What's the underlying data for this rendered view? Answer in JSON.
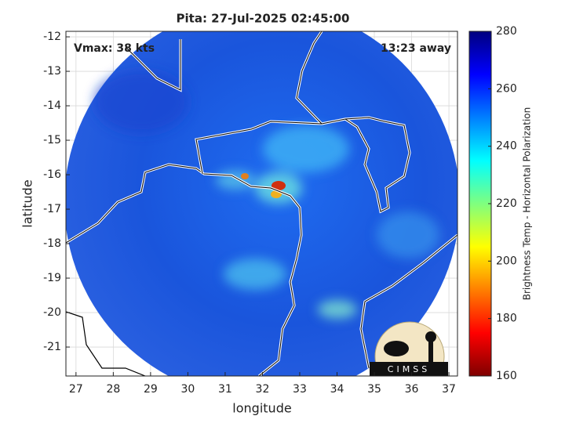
{
  "logo": "CIMSS",
  "chart_data": {
    "type": "map",
    "title": "Pita: 27-Jul-2025 02:45:00",
    "annotations": [
      "Vmax: 38 kts",
      "13:23 away"
    ],
    "xlabel": "longitude",
    "ylabel": "latitude",
    "xlim": [
      26.73,
      37.23
    ],
    "xticks": [
      27,
      28,
      29,
      30,
      31,
      32,
      33,
      34,
      35,
      36,
      37
    ],
    "ylim": [
      -21.84,
      -11.84
    ],
    "yticks": [
      -12,
      -13,
      -14,
      -15,
      -16,
      -17,
      -18,
      -19,
      -20,
      -21
    ],
    "grid": true,
    "colorbar": {
      "label": "Brightness Temp - Horizontal Polarization",
      "colormap": "jet",
      "clim": [
        160,
        280
      ],
      "ticks": [
        160,
        180,
        200,
        220,
        240,
        260,
        280
      ]
    }
  }
}
